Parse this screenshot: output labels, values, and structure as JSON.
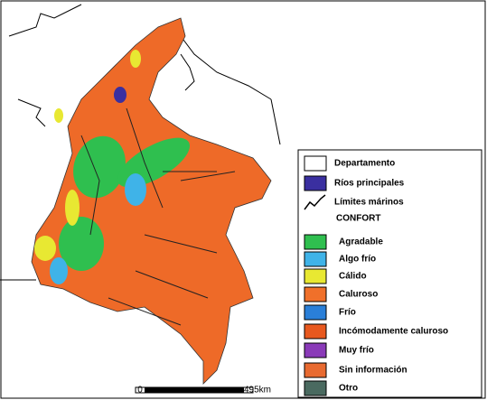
{
  "legend": {
    "items": [
      {
        "label": "Departamento",
        "kind": "box",
        "color": "#ffffff"
      },
      {
        "label": "Ríos principales",
        "kind": "box",
        "color": "#3a2fa0"
      },
      {
        "label": "Límites márinos",
        "kind": "line",
        "color": "#000000"
      },
      {
        "label": "CONFORT",
        "kind": "heading"
      },
      {
        "label": "Agradable",
        "kind": "box",
        "color": "#2fbf4f"
      },
      {
        "label": "Algo frío",
        "kind": "box",
        "color": "#3fb3e8"
      },
      {
        "label": "Cálido",
        "kind": "box",
        "color": "#e8e832"
      },
      {
        "label": "Caluroso",
        "kind": "box",
        "color": "#f0702a"
      },
      {
        "label": "Frío",
        "kind": "box",
        "color": "#2a7fd8"
      },
      {
        "label": "Incómodamente caluroso",
        "kind": "box",
        "color": "#e8581e"
      },
      {
        "label": "Muy frío",
        "kind": "box",
        "color": "#8a3ab8"
      },
      {
        "label": "Sin información",
        "kind": "box",
        "color": "#e86a30"
      },
      {
        "label": "Otro",
        "kind": "box",
        "color": "#4a6a60"
      }
    ]
  },
  "scale_bar": {
    "start": "0",
    "end": "495km"
  }
}
